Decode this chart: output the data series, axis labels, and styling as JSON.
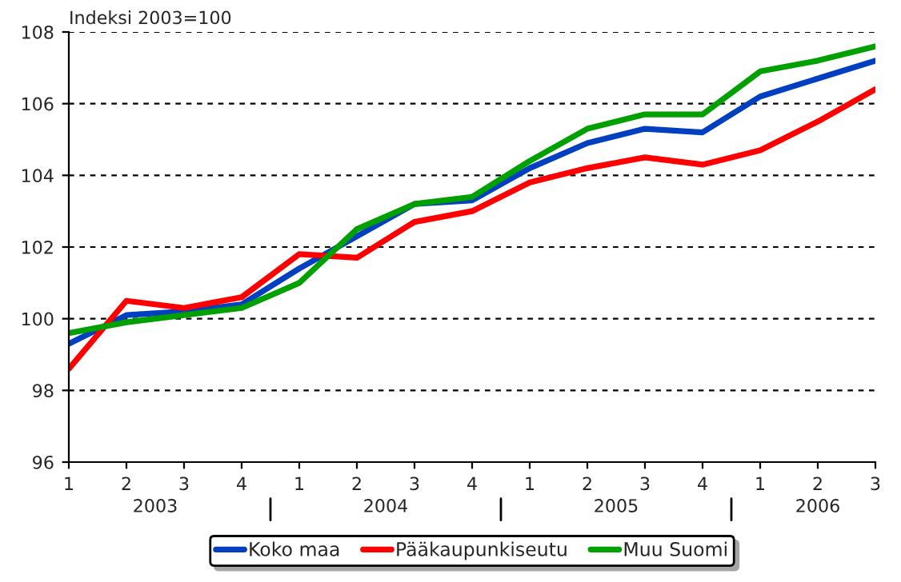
{
  "chart_data": {
    "type": "line",
    "ylabel": "Indeksi 2003=100",
    "categories": [
      "1",
      "2",
      "3",
      "4",
      "1",
      "2",
      "3",
      "4",
      "1",
      "2",
      "3",
      "4",
      "1",
      "2",
      "3"
    ],
    "series": [
      {
        "name": "Koko maa",
        "color": "#0040c0",
        "values": [
          99.3,
          100.1,
          100.2,
          100.4,
          101.4,
          102.3,
          103.2,
          103.3,
          104.2,
          104.9,
          105.3,
          105.2,
          106.2,
          106.7,
          107.2
        ]
      },
      {
        "name": "Pääkaupunkiseutu",
        "color": "#ff0000",
        "values": [
          98.6,
          100.5,
          100.3,
          100.6,
          101.8,
          101.7,
          102.7,
          103.0,
          103.8,
          104.2,
          104.5,
          104.3,
          104.7,
          105.5,
          106.4
        ]
      },
      {
        "name": "Muu Suomi",
        "color": "#00a000",
        "values": [
          99.6,
          99.9,
          100.1,
          100.3,
          101.0,
          102.5,
          103.2,
          103.4,
          104.4,
          105.3,
          105.7,
          105.7,
          106.9,
          107.2,
          107.6
        ]
      }
    ],
    "annotations": [
      "2003",
      "2004",
      "2005",
      "2006"
    ],
    "ylim": [
      96,
      108
    ],
    "yticks": [
      96,
      98,
      100,
      102,
      104,
      106,
      108
    ],
    "grid": "y",
    "legend": "bottom",
    "marker": "none",
    "line_style": "solid"
  }
}
